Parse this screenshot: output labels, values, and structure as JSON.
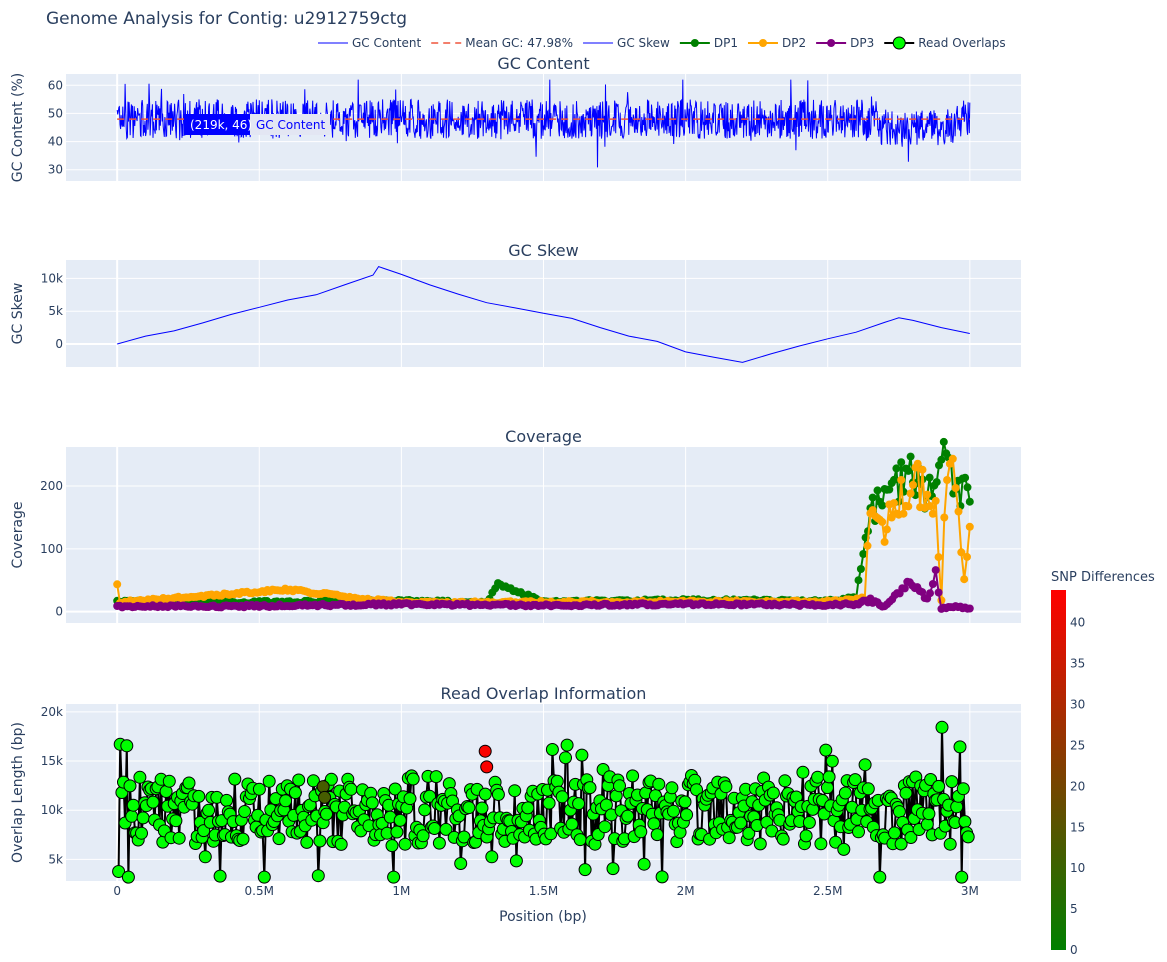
{
  "title": "Genome Analysis for Contig: u2912759ctg",
  "legend": {
    "items": [
      {
        "label": "GC Content",
        "kind": "line",
        "color": "#0000ff"
      },
      {
        "label": "Mean GC: 47.98%",
        "kind": "dash",
        "color": "#ef553b"
      },
      {
        "label": "GC Skew",
        "kind": "line",
        "color": "#0000ff"
      },
      {
        "label": "DP1",
        "kind": "linemarker",
        "color": "#008000"
      },
      {
        "label": "DP2",
        "kind": "linemarker",
        "color": "#ffa500"
      },
      {
        "label": "DP3",
        "kind": "linemarker",
        "color": "#800080"
      },
      {
        "label": "Read Overlaps",
        "kind": "bigmarker",
        "color": "#00ff00"
      }
    ]
  },
  "tooltip": {
    "value": "(219k, 46)",
    "name": "GC Content"
  },
  "colorbar": {
    "title": "SNP Differences",
    "ticks": [
      "0",
      "5",
      "10",
      "15",
      "20",
      "25",
      "30",
      "35",
      "40"
    ],
    "range": [
      0,
      44
    ],
    "color_low": "#008000",
    "color_high": "#ff0000"
  },
  "x_axis": {
    "label": "Position (bp)",
    "ticks": [
      "0",
      "0.5M",
      "1M",
      "1.5M",
      "2M",
      "2.5M",
      "3M"
    ],
    "tick_values": [
      0,
      500000,
      1000000,
      1500000,
      2000000,
      2500000,
      3000000
    ],
    "range": [
      -180000,
      3180000
    ]
  },
  "chart_data": [
    {
      "type": "line",
      "title": "GC Content",
      "ylabel": "GC Content (%)",
      "ylim": [
        26,
        64
      ],
      "yticks": [
        "30",
        "40",
        "50",
        "60"
      ],
      "ytick_values": [
        30,
        40,
        50,
        60
      ],
      "mean_gc": 47.98,
      "series": [
        {
          "name": "GC Content",
          "x_range": [
            0,
            3000000
          ],
          "approx_mean": 48,
          "approx_min": 28,
          "approx_max": 62,
          "color": "#0000ff"
        }
      ]
    },
    {
      "type": "line",
      "title": "GC Skew",
      "ylabel": "GC Skew",
      "ylim": [
        -3500,
        12800
      ],
      "yticks": [
        "0",
        "5k",
        "10k"
      ],
      "ytick_values": [
        0,
        5000,
        10000
      ],
      "series": [
        {
          "name": "GC Skew",
          "color": "#0000ff",
          "x": [
            0,
            100000,
            200000,
            300000,
            400000,
            500000,
            600000,
            700000,
            800000,
            900000,
            920000,
            1000000,
            1100000,
            1200000,
            1300000,
            1400000,
            1500000,
            1600000,
            1700000,
            1800000,
            1900000,
            2000000,
            2100000,
            2200000,
            2300000,
            2400000,
            2500000,
            2600000,
            2700000,
            2750000,
            2800000,
            2900000,
            3000000
          ],
          "y": [
            0,
            1200,
            2000,
            3200,
            4500,
            5600,
            6700,
            7500,
            9000,
            10500,
            11800,
            10600,
            9000,
            7600,
            6300,
            5500,
            4700,
            3900,
            2500,
            1200,
            400,
            -1200,
            -2000,
            -2800,
            -1500,
            -300,
            800,
            1800,
            3300,
            4000,
            3600,
            2500,
            1600
          ]
        }
      ]
    },
    {
      "type": "line",
      "title": "Coverage",
      "ylabel": "Coverage",
      "ylim": [
        -18,
        262
      ],
      "yticks": [
        "0",
        "100",
        "200"
      ],
      "ytick_values": [
        0,
        100,
        200
      ],
      "series": [
        {
          "name": "DP1",
          "color": "#008000",
          "baseline": 16,
          "x": [
            0,
            500000,
            1000000,
            1300000,
            1340000,
            1500000,
            2000000,
            2500000,
            2600000,
            2650000,
            2700000,
            2750000,
            2800000,
            2850000,
            2900000,
            2950000,
            3000000
          ],
          "y": [
            16,
            15,
            17,
            15,
            44,
            16,
            18,
            17,
            22,
            160,
            185,
            200,
            215,
            175,
            240,
            210,
            175
          ]
        },
        {
          "name": "DP2",
          "color": "#ffa500",
          "baseline": 14,
          "x": [
            0,
            10000,
            600000,
            1000000,
            1500000,
            2000000,
            2500000,
            2630000,
            2650000,
            2700000,
            2750000,
            2800000,
            2850000,
            2880000,
            2900000,
            2920000,
            2950000,
            2980000,
            3000000
          ],
          "y": [
            42,
            15,
            35,
            14,
            15,
            16,
            16,
            20,
            160,
            130,
            180,
            205,
            195,
            165,
            20,
            235,
            205,
            45,
            135
          ]
        },
        {
          "name": "DP3",
          "color": "#800080",
          "baseline": 10,
          "x": [
            0,
            500000,
            1000000,
            1500000,
            2000000,
            2500000,
            2600000,
            2650000,
            2700000,
            2780000,
            2850000,
            2880000,
            2900000,
            2950000,
            3000000
          ],
          "y": [
            8,
            9,
            12,
            10,
            12,
            11,
            12,
            18,
            8,
            45,
            22,
            58,
            5,
            8,
            5
          ]
        }
      ]
    },
    {
      "type": "scatter",
      "title": "Read Overlap Information",
      "ylabel": "Overlap Length (bp)",
      "ylim": [
        2800,
        20800
      ],
      "yticks": [
        "5k",
        "10k",
        "15k",
        "20k"
      ],
      "ytick_values": [
        5000,
        10000,
        15000,
        20000
      ],
      "series": [
        {
          "name": "Read Overlaps",
          "color": "#00ff00",
          "approx_min": 3200,
          "approx_max": 19000,
          "highlighted_points": [
            {
              "x": 1295000,
              "y": 16000,
              "snp": 43
            },
            {
              "x": 1300000,
              "y": 14400,
              "snp": 43
            },
            {
              "x": 725000,
              "y": 12400,
              "snp": 12
            },
            {
              "x": 730000,
              "y": 11300,
              "snp": 12
            }
          ]
        }
      ]
    }
  ]
}
